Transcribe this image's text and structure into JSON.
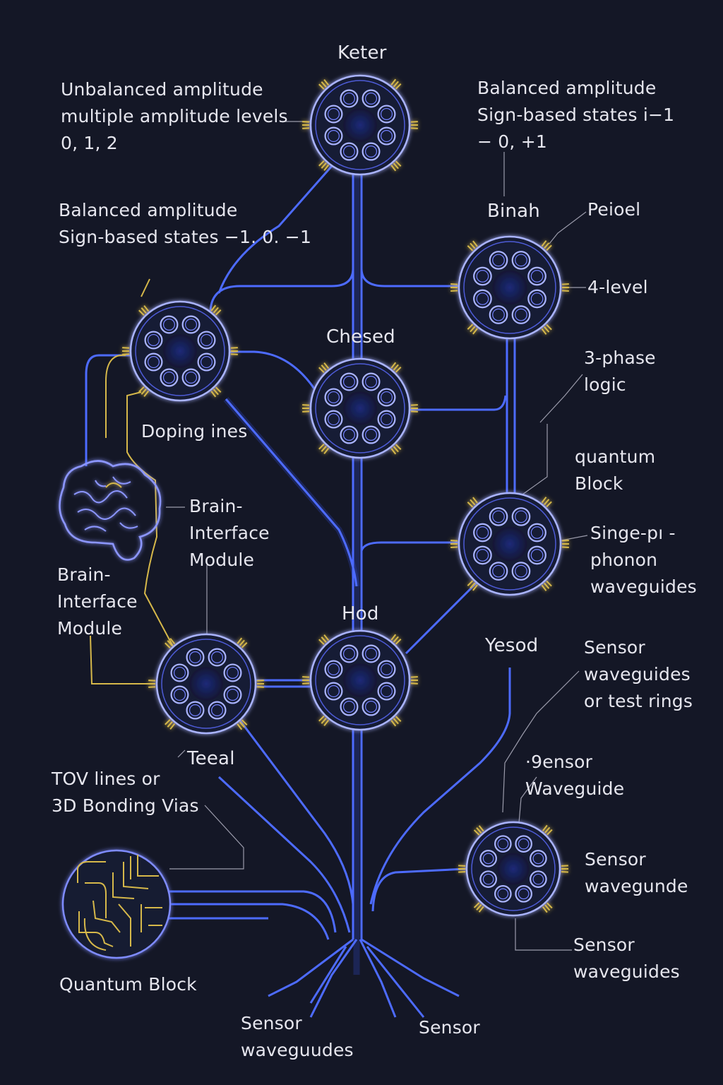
{
  "nodes": {
    "keter": "Keter",
    "binah": "Binah",
    "chesed": "Chesed",
    "hod": "Hod",
    "yesod": "Yesod",
    "teeal": "Teeal"
  },
  "annotations": {
    "unbalanced": "Unbalanced amplitude\nmultiple amplitude levels\n0,  1, 2",
    "balanced_right": "Balanced amplitude\nSign-based states i−1\n− 0,  +1",
    "balanced_left": "Balanced amplitude\nSign-based states −1. 0. −1",
    "peioel": "Peioel",
    "four_level": "4-level",
    "three_phase": "3-phase\nlogic",
    "quantum_block_right": "quantum\nBlock",
    "doping": "Doping  ines",
    "brain_interface_right": "Brain-\nInterface\nModule",
    "brain_interface_left": "Brain-\nInterface\nModule",
    "single_phonon": "Singe-pı -\nphonon\nwaveguides",
    "sensor_test_rings": "Sensor\nwaveguides\nor test rings",
    "sensor_waveguide": "·9ensor\nWaveguide",
    "tov_lines": "TOV lines or\n3D Bonding Vias",
    "sensor_wavegunde": "Sensor\nwavegunde",
    "sensor_waveguides_right": "Sensor\nwaveguides",
    "quantum_block_left": "Quantum Block",
    "sensor_waveguudes": "Sensor\nwaveguudes",
    "sensor_bottom": "Sensor"
  },
  "colors": {
    "background": "#141726",
    "waveguide": "#4d6bff",
    "node_ring": "#aab4ff",
    "connector": "#d6b84a",
    "text": "#e6e6ee"
  },
  "icons": {
    "brain": "brain-icon",
    "quantum_chip": "quantum-block-icon"
  }
}
